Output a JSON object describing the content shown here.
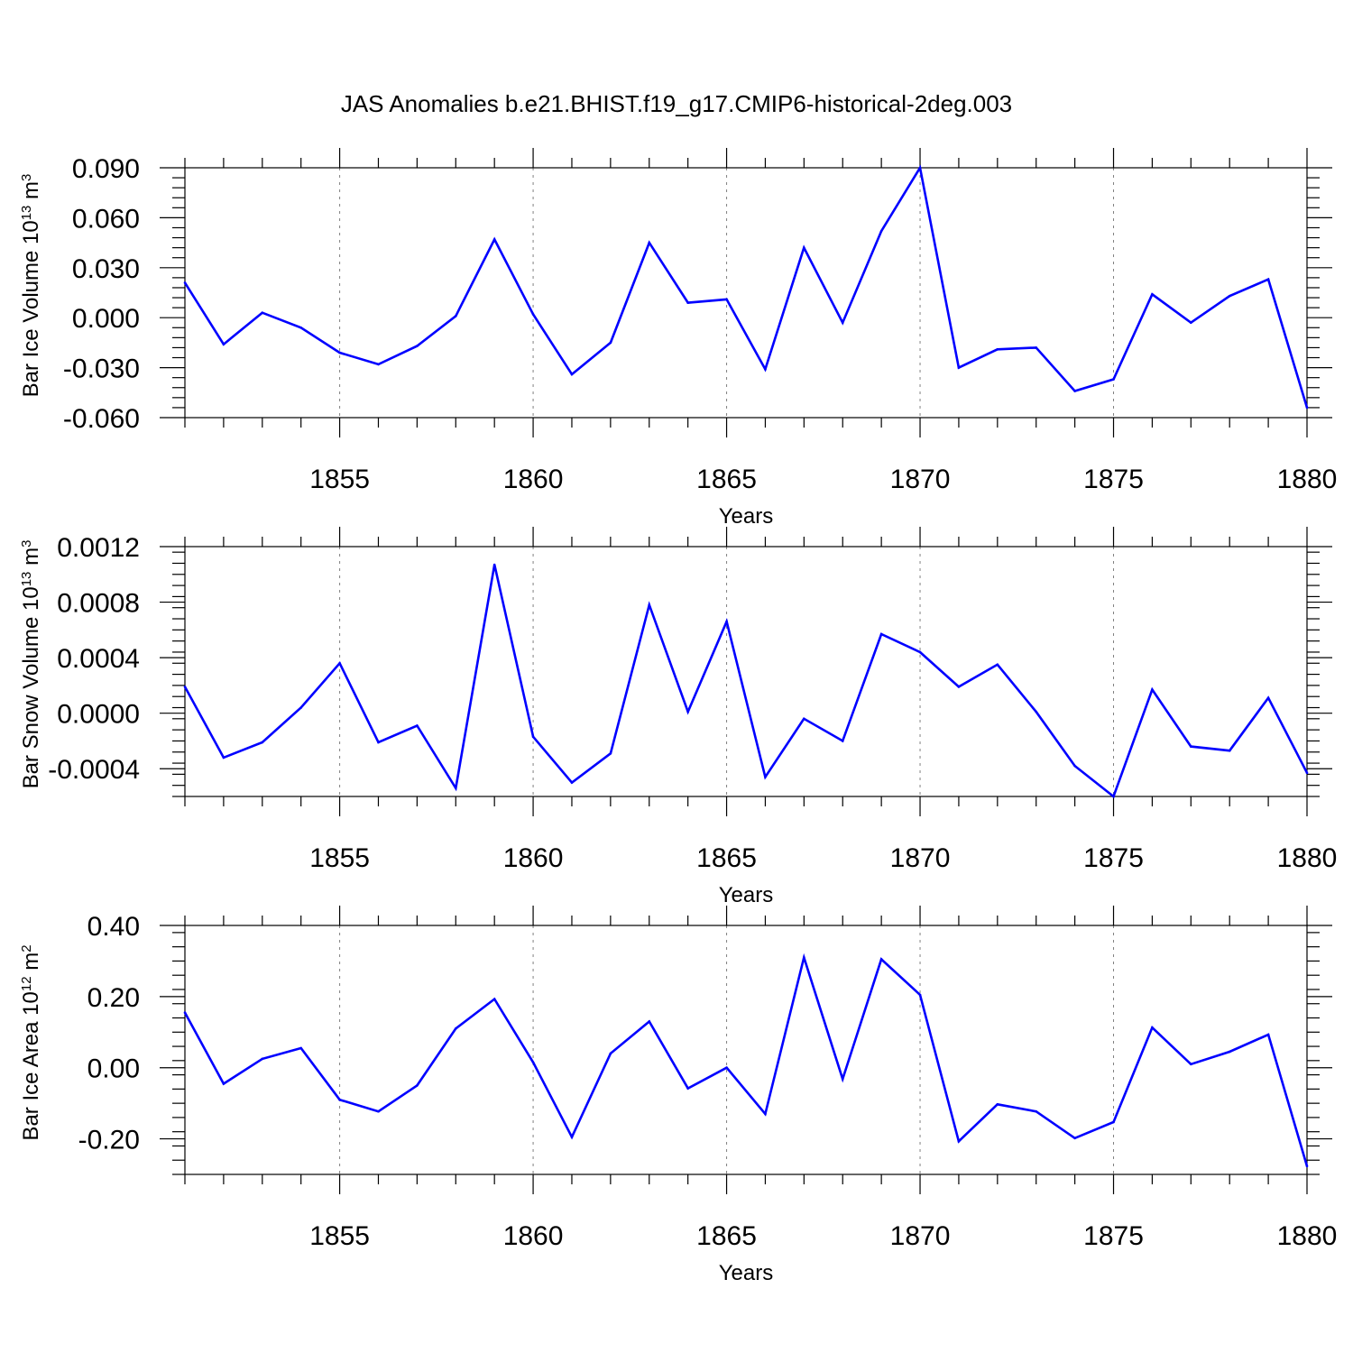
{
  "title": "JAS Anomalies b.e21.BHIST.f19_g17.CMIP6-historical-2deg.003",
  "line_color": "#0000ff",
  "chart_data": [
    {
      "type": "line",
      "xlabel": "Years",
      "ylabel": {
        "text": "Bar Ice Volume 10",
        "sup": "13",
        "mid": " m",
        "sup2": "3"
      },
      "xlim": [
        1851,
        1880
      ],
      "ylim": [
        -0.06,
        0.09
      ],
      "xticks": [
        "1855",
        "1860",
        "1865",
        "1870",
        "1875",
        "1880"
      ],
      "yticks": [
        "0.090",
        "0.060",
        "0.030",
        "0.000",
        "-0.030",
        "-0.060"
      ],
      "ytick_values": [
        0.09,
        0.06,
        0.03,
        0.0,
        -0.03,
        -0.06
      ],
      "grid": "vertical dashed at labeled years",
      "x": [
        1851,
        1852,
        1853,
        1854,
        1855,
        1856,
        1857,
        1858,
        1859,
        1860,
        1861,
        1862,
        1863,
        1864,
        1865,
        1866,
        1867,
        1868,
        1869,
        1870,
        1871,
        1872,
        1873,
        1874,
        1875,
        1876,
        1877,
        1878,
        1879,
        1880
      ],
      "values": [
        0.021,
        -0.016,
        0.003,
        -0.006,
        -0.021,
        -0.028,
        -0.017,
        0.001,
        0.047,
        0.002,
        -0.034,
        -0.015,
        0.045,
        0.009,
        0.011,
        -0.031,
        0.042,
        -0.003,
        0.052,
        0.09,
        -0.03,
        -0.019,
        -0.018,
        -0.044,
        -0.037,
        0.014,
        -0.003,
        0.013,
        0.023,
        -0.054
      ]
    },
    {
      "type": "line",
      "xlabel": "Years",
      "ylabel": {
        "text": "Bar Snow Volume 10",
        "sup": "13",
        "mid": " m",
        "sup2": "3"
      },
      "xlim": [
        1851,
        1880
      ],
      "ylim": [
        -0.0006,
        0.0012
      ],
      "xticks": [
        "1855",
        "1860",
        "1865",
        "1870",
        "1875",
        "1880"
      ],
      "yticks": [
        "0.0012",
        "0.0008",
        "0.0004",
        "0.0000",
        "-0.0004"
      ],
      "ytick_values": [
        0.0012,
        0.0008,
        0.0004,
        0.0,
        -0.0004
      ],
      "grid": "vertical dashed at labeled years",
      "x": [
        1851,
        1852,
        1853,
        1854,
        1855,
        1856,
        1857,
        1858,
        1859,
        1860,
        1861,
        1862,
        1863,
        1864,
        1865,
        1866,
        1867,
        1868,
        1869,
        1870,
        1871,
        1872,
        1873,
        1874,
        1875,
        1876,
        1877,
        1878,
        1879,
        1880
      ],
      "values": [
        0.00019,
        -0.00032,
        -0.00021,
        4e-05,
        0.00036,
        -0.00021,
        -9e-05,
        -0.00054,
        0.00107,
        -0.00017,
        -0.0005,
        -0.00029,
        0.00078,
        1e-05,
        0.00066,
        -0.00046,
        -4e-05,
        -0.0002,
        0.00057,
        0.00044,
        0.00019,
        0.00035,
        1e-05,
        -0.00038,
        -0.0006,
        0.00017,
        -0.00024,
        -0.00027,
        0.00011,
        -0.00043
      ]
    },
    {
      "type": "line",
      "xlabel": "Years",
      "ylabel": {
        "text": "Bar Ice Area 10",
        "sup": "12",
        "mid": " m",
        "sup2": "2"
      },
      "xlim": [
        1851,
        1880
      ],
      "ylim": [
        -0.3,
        0.4
      ],
      "xticks": [
        "1855",
        "1860",
        "1865",
        "1870",
        "1875",
        "1880"
      ],
      "yticks": [
        "0.40",
        "0.20",
        "0.00",
        "-0.20"
      ],
      "ytick_values": [
        0.4,
        0.2,
        0.0,
        -0.2
      ],
      "grid": "vertical dashed at labeled years",
      "x": [
        1851,
        1852,
        1853,
        1854,
        1855,
        1856,
        1857,
        1858,
        1859,
        1860,
        1861,
        1862,
        1863,
        1864,
        1865,
        1866,
        1867,
        1868,
        1869,
        1870,
        1871,
        1872,
        1873,
        1874,
        1875,
        1876,
        1877,
        1878,
        1879,
        1880
      ],
      "values": [
        0.155,
        -0.045,
        0.025,
        0.055,
        -0.09,
        -0.123,
        -0.05,
        0.11,
        0.193,
        0.015,
        -0.195,
        0.04,
        0.13,
        -0.058,
        0.0,
        -0.13,
        0.31,
        -0.032,
        0.305,
        0.205,
        -0.207,
        -0.103,
        -0.123,
        -0.198,
        -0.153,
        0.113,
        0.01,
        0.045,
        0.093,
        -0.277
      ]
    }
  ]
}
